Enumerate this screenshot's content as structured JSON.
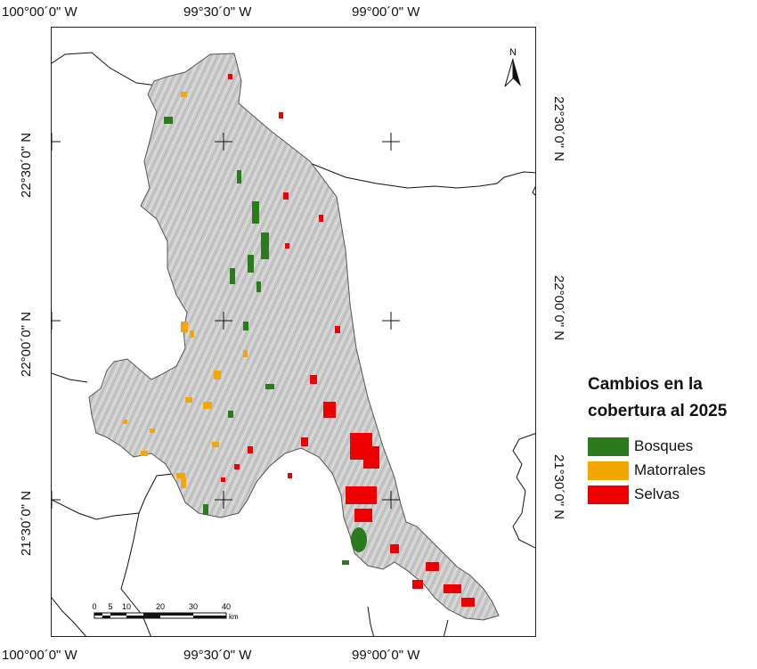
{
  "coordinates": {
    "top": [
      "100°00´0\" W",
      "99°30´0\" W",
      "99°00´0\" W"
    ],
    "bottom": [
      "100°00´0\" W",
      "99°30´0\" W",
      "99°00´0\" W"
    ],
    "left": [
      "22°30´0\" N",
      "22°00´0\" N",
      "21°30´0\" N"
    ],
    "right": [
      "22°30´0\" N",
      "22°00´0\" N",
      "21°30´0\" N"
    ]
  },
  "north_arrow": {
    "label": "N"
  },
  "scale_bar": {
    "ticks": [
      "0",
      "5",
      "10",
      "20",
      "30",
      "40"
    ],
    "unit": "km"
  },
  "legend": {
    "title_line1": "Cambios en la",
    "title_line2": "cobertura al 2025",
    "items": [
      {
        "label": "Bosques",
        "color": "#2b7a1e"
      },
      {
        "label": "Matorrales",
        "color": "#f2a800"
      },
      {
        "label": "Selvas",
        "color": "#ee0000"
      }
    ]
  },
  "colors": {
    "region_fill": "#c9c9c9",
    "region_stroke": "#555555",
    "boundary": "#111111"
  }
}
